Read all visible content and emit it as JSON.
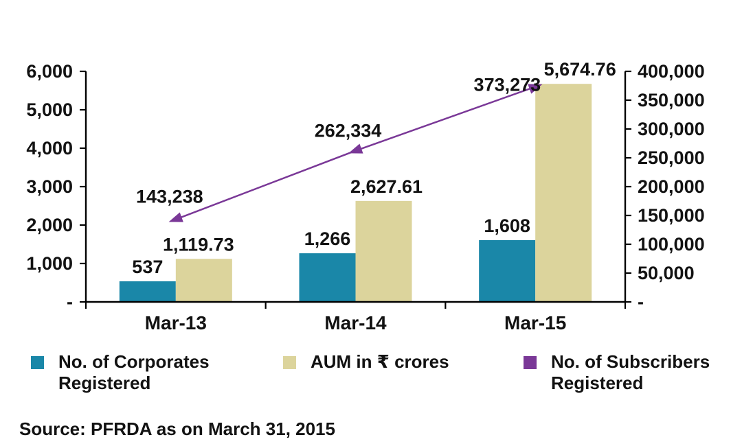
{
  "chart_data": {
    "type": "combo-bar-line",
    "categories": [
      "Mar-13",
      "Mar-14",
      "Mar-15"
    ],
    "series": [
      {
        "name": "No. of Corporates Registered",
        "type": "bar",
        "axis": "left",
        "color": "#1A87A8",
        "values": [
          537,
          1266,
          1608
        ],
        "value_labels": [
          "537",
          "1,266",
          "1,608"
        ]
      },
      {
        "name": "AUM in ₹ crores",
        "type": "bar",
        "axis": "left",
        "color": "#DCD49C",
        "values": [
          1119.73,
          2627.61,
          5674.76
        ],
        "value_labels": [
          "1,119.73",
          "2,627.61",
          "5,674.76"
        ]
      },
      {
        "name": "No. of Subscribers Registered",
        "type": "line",
        "axis": "right",
        "color": "#7A3897",
        "values": [
          143238,
          262334,
          373273
        ],
        "value_labels": [
          "143,238",
          "262,334",
          "373,273"
        ]
      }
    ],
    "left_axis": {
      "min": 0,
      "max": 6000,
      "step": 1000,
      "tick_labels_top_to_bottom": [
        "6,000",
        "5,000",
        "4,000",
        "3,000",
        "2,000",
        "1,000",
        "-"
      ]
    },
    "right_axis": {
      "min": 0,
      "max": 400000,
      "step": 50000,
      "tick_labels_top_to_bottom": [
        "400,000",
        "350,000",
        "300,000",
        "250,000",
        "200,000",
        "150,000",
        "100,000",
        "50,000",
        "-"
      ]
    },
    "grid": false,
    "legend_position": "bottom"
  },
  "legend": {
    "items": [
      {
        "lines": [
          "No. of Corporates",
          "Registered"
        ],
        "color": "#1A87A8"
      },
      {
        "lines": [
          "AUM in ₹ crores"
        ],
        "color": "#DCD49C"
      },
      {
        "lines": [
          "No. of Subscribers",
          "Registered"
        ],
        "color": "#7A3897"
      }
    ]
  },
  "source_note": "Source: PFRDA as on March 31, 2015",
  "colors": {
    "background": "#FFFFFF",
    "axis": "#000000",
    "text": "#121212"
  }
}
